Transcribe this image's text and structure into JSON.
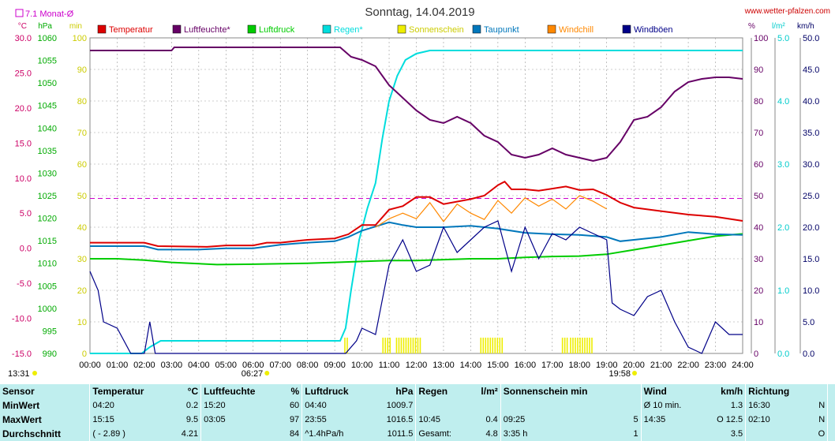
{
  "chart_data": {
    "type": "line",
    "title": "Sonntag, 14.04.2019",
    "source": "www.wetter-pfalzen.com",
    "monthly_avg_label": "7.1 Monat-Ø",
    "monthly_avg_temp": 7.1,
    "left_axes": [
      {
        "unit": "°C",
        "range": [
          -15,
          30
        ],
        "step": 5,
        "color": "#cc0066",
        "ticks": [
          "30.0",
          "25.0",
          "20.0",
          "15.0",
          "10.0",
          "5.0",
          "0.0",
          "-5.0",
          "-10.0",
          "-15.0"
        ]
      },
      {
        "unit": "hPa",
        "range": [
          990,
          1060
        ],
        "step": 5,
        "color": "#00aa00",
        "ticks": [
          "1060",
          "1055",
          "1050",
          "1045",
          "1040",
          "1035",
          "1030",
          "1025",
          "1020",
          "1015",
          "1010",
          "1005",
          "1000",
          "995",
          "990"
        ]
      },
      {
        "unit": "min",
        "range": [
          0,
          100
        ],
        "step": 10,
        "color": "#cccc00",
        "ticks": [
          "100",
          "90",
          "80",
          "70",
          "60",
          "50",
          "40",
          "30",
          "20",
          "10",
          "0"
        ]
      }
    ],
    "right_axes": [
      {
        "unit": "%",
        "range": [
          0,
          100
        ],
        "step": 10,
        "color": "#660066",
        "ticks": [
          "100",
          "90",
          "80",
          "70",
          "60",
          "50",
          "40",
          "30",
          "20",
          "10",
          "0"
        ]
      },
      {
        "unit": "l/m²",
        "range": [
          0,
          5
        ],
        "color": "#00cccc",
        "ticks": [
          "5.0",
          "4.0",
          "3.0",
          "2.0",
          "1.0",
          "0.0"
        ]
      },
      {
        "unit": "km/h",
        "range": [
          0,
          50
        ],
        "step": 5,
        "color": "#000066",
        "ticks": [
          "50.0",
          "45.0",
          "40.0",
          "35.0",
          "30.0",
          "25.0",
          "20.0",
          "15.0",
          "10.0",
          "5.0",
          "0.0"
        ]
      }
    ],
    "x_range_hours": [
      0,
      24
    ],
    "x_ticks": [
      "00:00",
      "01:00",
      "02:00",
      "03:00",
      "04:00",
      "05:00",
      "06:00",
      "07:00",
      "08:00",
      "09:00",
      "10:00",
      "11:00",
      "12:00",
      "13:00",
      "14:00",
      "15:00",
      "16:00",
      "17:00",
      "18:00",
      "19:00",
      "20:00",
      "21:00",
      "22:00",
      "23:00",
      "24:00"
    ],
    "moonrise": "13:31",
    "sunrise": "06:27",
    "sunset": "19:58",
    "grid": true,
    "legend": [
      "Temperatur",
      "Luftfeuchte*",
      "Luftdruck",
      "Regen*",
      "Sonnenschein",
      "Taupunkt",
      "Windchill",
      "Windböen"
    ],
    "series": [
      {
        "name": "Temperatur",
        "color": "#dd0000",
        "axis": "°C",
        "points": [
          [
            0,
            0.8
          ],
          [
            2,
            0.8
          ],
          [
            2.5,
            0.3
          ],
          [
            4.3,
            0.2
          ],
          [
            5,
            0.4
          ],
          [
            6,
            0.4
          ],
          [
            6.5,
            0.8
          ],
          [
            7,
            0.8
          ],
          [
            8,
            1.2
          ],
          [
            9,
            1.4
          ],
          [
            9.5,
            2.0
          ],
          [
            10,
            3.3
          ],
          [
            10.5,
            3.3
          ],
          [
            11,
            5.5
          ],
          [
            11.5,
            6.0
          ],
          [
            12,
            7.3
          ],
          [
            12.5,
            7.3
          ],
          [
            13,
            6.3
          ],
          [
            14,
            7.0
          ],
          [
            14.5,
            7.5
          ],
          [
            15,
            9.0
          ],
          [
            15.25,
            9.5
          ],
          [
            15.5,
            8.4
          ],
          [
            16,
            8.4
          ],
          [
            16.5,
            8.2
          ],
          [
            17,
            8.5
          ],
          [
            17.5,
            8.8
          ],
          [
            18,
            8.3
          ],
          [
            18.5,
            8.4
          ],
          [
            19,
            7.6
          ],
          [
            19.5,
            6.5
          ],
          [
            20,
            5.8
          ],
          [
            21,
            5.3
          ],
          [
            22,
            4.8
          ],
          [
            23,
            4.5
          ],
          [
            24,
            3.9
          ]
        ]
      },
      {
        "name": "Luftfeuchte*",
        "color": "#660066",
        "axis": "%",
        "points": [
          [
            0,
            96
          ],
          [
            3,
            96
          ],
          [
            3.1,
            97
          ],
          [
            9.2,
            97
          ],
          [
            9.6,
            94
          ],
          [
            10,
            93
          ],
          [
            10.5,
            91
          ],
          [
            11,
            85
          ],
          [
            11.5,
            81
          ],
          [
            12,
            77
          ],
          [
            12.5,
            74
          ],
          [
            13,
            73
          ],
          [
            13.5,
            75
          ],
          [
            14,
            73
          ],
          [
            14.5,
            69
          ],
          [
            15,
            67
          ],
          [
            15.5,
            63
          ],
          [
            16,
            62
          ],
          [
            16.5,
            63
          ],
          [
            17,
            65
          ],
          [
            17.5,
            63
          ],
          [
            18,
            62
          ],
          [
            18.5,
            61
          ],
          [
            19,
            62
          ],
          [
            19.5,
            67
          ],
          [
            20,
            74
          ],
          [
            20.5,
            75
          ],
          [
            21,
            78
          ],
          [
            21.5,
            83
          ],
          [
            22,
            86
          ],
          [
            22.5,
            87
          ],
          [
            23,
            87.5
          ],
          [
            23.5,
            87.5
          ],
          [
            24,
            87
          ]
        ]
      },
      {
        "name": "Luftdruck",
        "color": "#00cc00",
        "axis": "hPa",
        "points": [
          [
            0,
            1011
          ],
          [
            1,
            1011
          ],
          [
            2,
            1010.7
          ],
          [
            3,
            1010.2
          ],
          [
            4.67,
            1009.7
          ],
          [
            6,
            1009.8
          ],
          [
            8,
            1010
          ],
          [
            9,
            1010.2
          ],
          [
            10,
            1010.4
          ],
          [
            11,
            1010.6
          ],
          [
            12,
            1010.6
          ],
          [
            13,
            1010.8
          ],
          [
            14,
            1011
          ],
          [
            15,
            1011
          ],
          [
            16,
            1011.3
          ],
          [
            17,
            1011.5
          ],
          [
            18,
            1011.6
          ],
          [
            19,
            1012
          ],
          [
            20,
            1013
          ],
          [
            21,
            1014
          ],
          [
            22,
            1015
          ],
          [
            23,
            1016
          ],
          [
            23.92,
            1016.5
          ],
          [
            24,
            1016.5
          ]
        ]
      },
      {
        "name": "Regen*",
        "color": "#00dddd",
        "axis": "l/m²",
        "points": [
          [
            0,
            0
          ],
          [
            1.9,
            0
          ],
          [
            2.2,
            0.1
          ],
          [
            2.6,
            0.2
          ],
          [
            3,
            0.2
          ],
          [
            9.2,
            0.2
          ],
          [
            9.4,
            0.4
          ],
          [
            9.6,
            1.0
          ],
          [
            9.9,
            1.8
          ],
          [
            10.2,
            2.3
          ],
          [
            10.5,
            2.7
          ],
          [
            10.75,
            3.4
          ],
          [
            11,
            4.0
          ],
          [
            11.3,
            4.4
          ],
          [
            11.6,
            4.65
          ],
          [
            12,
            4.75
          ],
          [
            12.5,
            4.8
          ],
          [
            24,
            4.8
          ]
        ]
      },
      {
        "name": "Taupunkt",
        "color": "#0077bb",
        "axis": "°C",
        "points": [
          [
            0,
            0.3
          ],
          [
            2,
            0.3
          ],
          [
            2.5,
            -0.2
          ],
          [
            4,
            -0.2
          ],
          [
            5,
            0.0
          ],
          [
            6,
            0
          ],
          [
            7,
            0.5
          ],
          [
            8,
            0.8
          ],
          [
            9,
            1.0
          ],
          [
            9.5,
            1.6
          ],
          [
            10,
            2.5
          ],
          [
            11,
            3.7
          ],
          [
            11.5,
            3.3
          ],
          [
            12,
            3.0
          ],
          [
            13,
            3.0
          ],
          [
            14,
            3.2
          ],
          [
            15,
            2.8
          ],
          [
            16,
            2.2
          ],
          [
            17,
            2.0
          ],
          [
            18,
            1.9
          ],
          [
            19,
            1.6
          ],
          [
            19.5,
            1.0
          ],
          [
            20,
            1.2
          ],
          [
            21,
            1.6
          ],
          [
            22,
            2.3
          ],
          [
            23,
            2.0
          ],
          [
            24,
            1.9
          ]
        ]
      },
      {
        "name": "Windchill",
        "color": "#ff8800",
        "axis": "°C",
        "points": [
          [
            10.5,
            3.0
          ],
          [
            11,
            4.2
          ],
          [
            11.5,
            5.0
          ],
          [
            12,
            4.2
          ],
          [
            12.5,
            6.5
          ],
          [
            13,
            3.8
          ],
          [
            13.5,
            6.3
          ],
          [
            14,
            5.0
          ],
          [
            14.5,
            4.1
          ],
          [
            15,
            6.8
          ],
          [
            15.5,
            5.0
          ],
          [
            16,
            7.2
          ],
          [
            16.5,
            6.0
          ],
          [
            17,
            7.0
          ],
          [
            17.5,
            5.6
          ],
          [
            18,
            7.5
          ],
          [
            18.5,
            6.7
          ],
          [
            19,
            5.6
          ]
        ]
      },
      {
        "name": "Windböen",
        "color": "#000088",
        "axis": "km/h",
        "points": [
          [
            0,
            13
          ],
          [
            0.3,
            10
          ],
          [
            0.5,
            5
          ],
          [
            1,
            4
          ],
          [
            1.5,
            0
          ],
          [
            2,
            0
          ],
          [
            2.2,
            5
          ],
          [
            2.4,
            0
          ],
          [
            9.4,
            0
          ],
          [
            9.8,
            2
          ],
          [
            10,
            4
          ],
          [
            10.5,
            3
          ],
          [
            11,
            14
          ],
          [
            11.5,
            18
          ],
          [
            12,
            13
          ],
          [
            12.5,
            14
          ],
          [
            13,
            20
          ],
          [
            13.5,
            16
          ],
          [
            14,
            18
          ],
          [
            14.5,
            20
          ],
          [
            15,
            21
          ],
          [
            15.5,
            13
          ],
          [
            16,
            20
          ],
          [
            16.5,
            15
          ],
          [
            17,
            19
          ],
          [
            17.5,
            18
          ],
          [
            18,
            20
          ],
          [
            18.5,
            19
          ],
          [
            19,
            18
          ],
          [
            19.2,
            8
          ],
          [
            19.5,
            7
          ],
          [
            20,
            6
          ],
          [
            20.5,
            9
          ],
          [
            21,
            10
          ],
          [
            21.5,
            5
          ],
          [
            22,
            1
          ],
          [
            22.5,
            0
          ],
          [
            23,
            5
          ],
          [
            23.5,
            3
          ],
          [
            24,
            3
          ]
        ]
      }
    ],
    "sunshine_intervals": [
      [
        9.35,
        9.45
      ],
      [
        10.75,
        11.05
      ],
      [
        11.25,
        12.15
      ],
      [
        14.35,
        15.15
      ],
      [
        17.35,
        17.55
      ],
      [
        17.65,
        18.45
      ]
    ]
  },
  "stats": {
    "headers": [
      "Sensor",
      "Temperatur",
      "°C",
      "Luftfeuchte",
      "%",
      "Luftdruck",
      "hPa",
      "Regen",
      "l/m²",
      "Sonnenschein min",
      "Wind",
      "km/h",
      "Richtung"
    ],
    "rows": [
      {
        "label": "MinWert",
        "temp_time": "04:20",
        "temp": "0.2",
        "hum_time": "15:20",
        "hum": "60",
        "press_time": "04:40",
        "press": "1009.7",
        "rain_time": "",
        "rain": "",
        "sun_time": "",
        "sun": "",
        "wind_label": "Ø 10 min.",
        "wind": "1.3",
        "dir_time": "16:30",
        "dir": "N"
      },
      {
        "label": "MaxWert",
        "temp_time": "15:15",
        "temp": "9.5",
        "hum_time": "03:05",
        "hum": "97",
        "press_time": "23:55",
        "press": "1016.5",
        "rain_time": "10:45",
        "rain": "0.4",
        "sun_time": "09:25",
        "sun": "5",
        "wind_label": "14:35",
        "wind": "O 12.5",
        "dir_time": "02:10",
        "dir": "N"
      },
      {
        "label": "Durchschnitt",
        "temp_time": "( - 2.89 )",
        "temp": "4.21",
        "hum_time": "",
        "hum": "84",
        "press_time": "^1.4hPa/h",
        "press": "1011.5",
        "rain_time": "Gesamt:",
        "rain": "4.8",
        "sun_time": "3:35 h",
        "sun": "1",
        "wind_label": "",
        "wind": "3.5",
        "dir_time": "",
        "dir": "O"
      }
    ]
  }
}
